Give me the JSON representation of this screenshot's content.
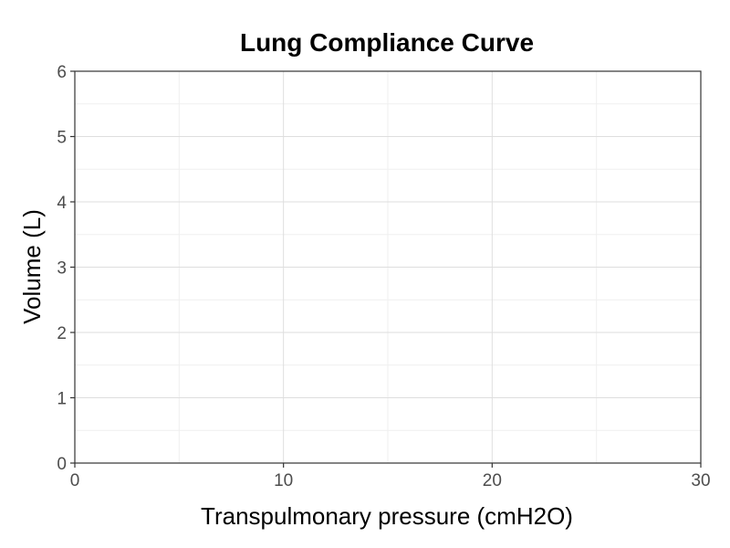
{
  "chart_data": {
    "type": "line",
    "title": "Lung Compliance Curve",
    "xlabel": "Transpulmonary pressure (cmH2O)",
    "ylabel": "Volume (L)",
    "xlim": [
      0,
      30
    ],
    "ylim": [
      0,
      6
    ],
    "x_ticks": [
      "0",
      "10",
      "20",
      "30"
    ],
    "y_ticks": [
      "0",
      "1",
      "2",
      "3",
      "4",
      "5",
      "6"
    ],
    "x_major_values": [
      0,
      10,
      20,
      30
    ],
    "x_minor_values": [
      5,
      15,
      25
    ],
    "y_major_values": [
      0,
      1,
      2,
      3,
      4,
      5,
      6
    ],
    "y_minor_values": [
      0.5,
      1.5,
      2.5,
      3.5,
      4.5,
      5.5
    ],
    "grid": true,
    "series": []
  },
  "colors": {
    "panel_border": "#333333",
    "grid_major": "#dedede",
    "grid_minor": "#efefef",
    "tick_text": "#4d4d4d"
  }
}
